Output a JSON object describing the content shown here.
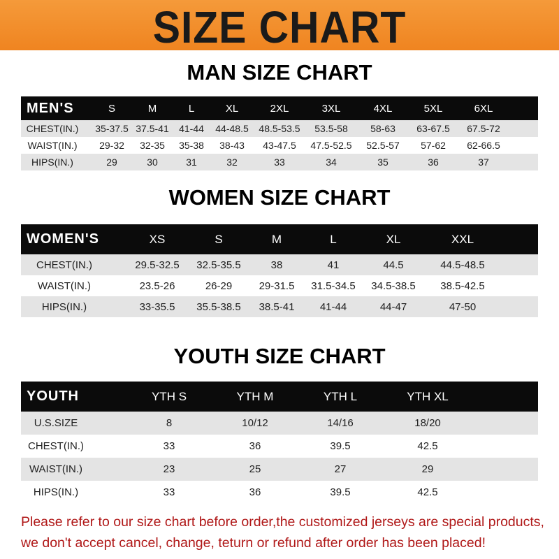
{
  "banner": {
    "title": "SIZE CHART",
    "color": "#ef8a2a"
  },
  "men": {
    "title": "MAN SIZE CHART",
    "header": [
      "MEN'S",
      "S",
      "M",
      "L",
      "XL",
      "2XL",
      "3XL",
      "4XL",
      "5XL",
      "6XL"
    ],
    "rows": [
      [
        "CHEST(IN.)",
        "35-37.5",
        "37.5-41",
        "41-44",
        "44-48.5",
        "48.5-53.5",
        "53.5-58",
        "58-63",
        "63-67.5",
        "67.5-72"
      ],
      [
        "WAIST(IN.)",
        "29-32",
        "32-35",
        "35-38",
        "38-43",
        "43-47.5",
        "47.5-52.5",
        "52.5-57",
        "57-62",
        "62-66.5"
      ],
      [
        "HIPS(IN.)",
        "29",
        "30",
        "31",
        "32",
        "33",
        "34",
        "35",
        "36",
        "37"
      ]
    ]
  },
  "women": {
    "title": "WOMEN SIZE CHART",
    "header": [
      "WOMEN'S",
      "XS",
      "S",
      "M",
      "L",
      "XL",
      "XXL"
    ],
    "rows": [
      [
        "CHEST(IN.)",
        "29.5-32.5",
        "32.5-35.5",
        "38",
        "41",
        "44.5",
        "44.5-48.5"
      ],
      [
        "WAIST(IN.)",
        "23.5-26",
        "26-29",
        "29-31.5",
        "31.5-34.5",
        "34.5-38.5",
        "38.5-42.5"
      ],
      [
        "HIPS(IN.)",
        "33-35.5",
        "35.5-38.5",
        "38.5-41",
        "41-44",
        "44-47",
        "47-50"
      ]
    ]
  },
  "youth": {
    "title": "YOUTH SIZE CHART",
    "header": [
      "YOUTH",
      "YTH S",
      "YTH M",
      "YTH L",
      "YTH XL"
    ],
    "rows": [
      [
        "U.S.SIZE",
        "8",
        "10/12",
        "14/16",
        "18/20"
      ],
      [
        "CHEST(IN.)",
        "33",
        "36",
        "39.5",
        "42.5"
      ],
      [
        "WAIST(IN.)",
        "23",
        "25",
        "27",
        "29"
      ],
      [
        "HIPS(IN.)",
        "33",
        "36",
        "39.5",
        "42.5"
      ]
    ]
  },
  "notice": {
    "line1": "Please refer to our size chart before order,the customized jerseys are special products,",
    "line2": "we don't accept cancel, change, teturn or refund after order has been placed!",
    "color": "#b01818"
  }
}
